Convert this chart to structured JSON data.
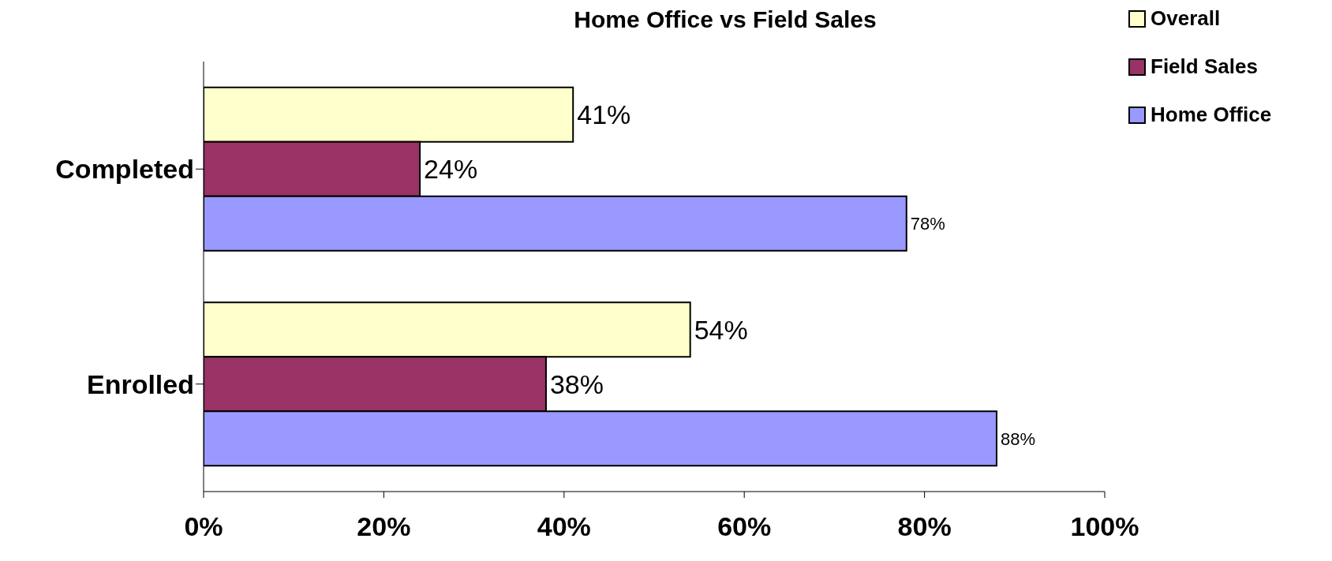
{
  "chart_data": {
    "type": "bar",
    "orientation": "horizontal",
    "title": "Home Office vs Field Sales",
    "categories": [
      "Completed",
      "Enrolled"
    ],
    "series": [
      {
        "name": "Overall",
        "color": "#ffffcc",
        "values": [
          41,
          54
        ],
        "value_labels": [
          "41%",
          "54%"
        ]
      },
      {
        "name": "Field Sales",
        "color": "#993366",
        "values": [
          24,
          38
        ],
        "value_labels": [
          "24%",
          "38%"
        ]
      },
      {
        "name": "Home Office",
        "color": "#9999ff",
        "values": [
          78,
          88
        ],
        "value_labels": [
          "78%",
          "88%"
        ]
      }
    ],
    "xlim": [
      0,
      100
    ],
    "xticks": [
      {
        "value": 0,
        "label": "0%"
      },
      {
        "value": 20,
        "label": "20%"
      },
      {
        "value": 40,
        "label": "40%"
      },
      {
        "value": 60,
        "label": "60%"
      },
      {
        "value": 80,
        "label": "80%"
      },
      {
        "value": 100,
        "label": "100%"
      }
    ],
    "legend": "top right",
    "grid": false
  }
}
